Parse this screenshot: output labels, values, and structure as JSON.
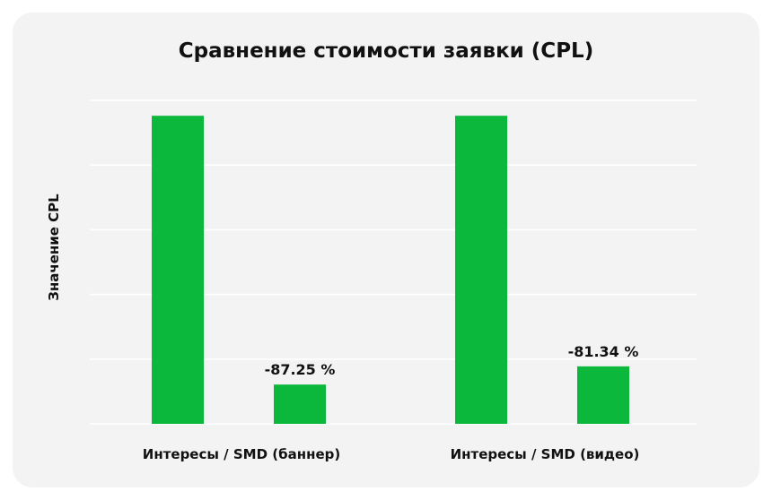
{
  "chart_data": {
    "type": "bar",
    "title": "Сравнение стоимости заявки (CPL)",
    "xlabel": "",
    "ylabel": "Значение CPL",
    "categories": [
      "Интересы / SMD (баннер)",
      "Интересы / SMD (видео)"
    ],
    "series": [
      {
        "values": [
          1.0,
          1.0
        ]
      },
      {
        "values": [
          0.1275,
          0.1866
        ]
      }
    ],
    "data_labels": [
      [
        "",
        ""
      ],
      [
        "-87.25 %",
        "-81.34 %"
      ]
    ],
    "ylim": [
      0,
      1.05
    ],
    "grid": true,
    "legend": "none",
    "colors": {
      "bar": "#0bb83b",
      "grid": "#ffffff",
      "card": "#f3f3f3"
    }
  }
}
